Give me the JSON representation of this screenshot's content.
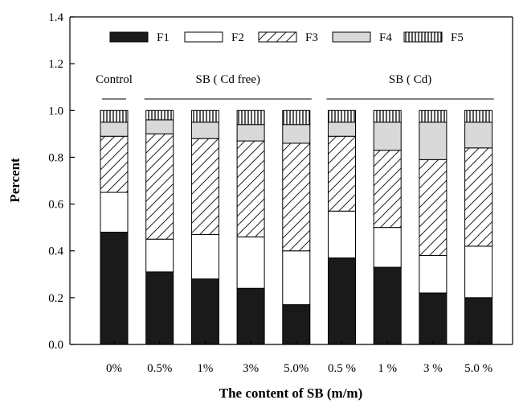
{
  "chart_data": {
    "type": "bar",
    "stacked": true,
    "normalized": true,
    "xlabel": "The content of SB (m/m)",
    "ylabel": "Percent",
    "ylim": [
      0,
      1.4
    ],
    "yticks": [
      "0.0",
      "0.2",
      "0.4",
      "0.6",
      "0.8",
      "1.0",
      "1.2",
      "1.4"
    ],
    "categories": [
      "0%",
      "0.5%",
      "1%",
      "3%",
      "5.0%",
      "0.5 %",
      "1 %",
      "3 %",
      "5.0 %"
    ],
    "groups": [
      {
        "label": "Control",
        "start": 0,
        "end": 0
      },
      {
        "label": "SB ( Cd free)",
        "start": 1,
        "end": 4
      },
      {
        "label": "SB ( Cd)",
        "start": 5,
        "end": 8
      }
    ],
    "legend_position": "top",
    "series": [
      {
        "name": "F1",
        "pattern": "solid-black",
        "values": [
          0.48,
          0.31,
          0.28,
          0.24,
          0.17,
          0.37,
          0.33,
          0.22,
          0.2
        ]
      },
      {
        "name": "F2",
        "pattern": "white",
        "values": [
          0.17,
          0.14,
          0.19,
          0.22,
          0.23,
          0.2,
          0.17,
          0.16,
          0.22
        ]
      },
      {
        "name": "F3",
        "pattern": "diagonal-hatch",
        "values": [
          0.24,
          0.45,
          0.41,
          0.41,
          0.46,
          0.32,
          0.33,
          0.41,
          0.42
        ]
      },
      {
        "name": "F4",
        "pattern": "light-gray",
        "values": [
          0.06,
          0.06,
          0.07,
          0.07,
          0.08,
          0.06,
          0.12,
          0.16,
          0.11
        ]
      },
      {
        "name": "F5",
        "pattern": "vertical-stripes",
        "values": [
          0.05,
          0.04,
          0.05,
          0.06,
          0.06,
          0.05,
          0.05,
          0.05,
          0.05
        ]
      }
    ],
    "colors": {
      "F1": "#1a1a1a",
      "F2": "#ffffff",
      "F3": "#ffffff",
      "F4": "#d9d9d9",
      "F5": "#ffffff",
      "axis": "#000000"
    }
  }
}
